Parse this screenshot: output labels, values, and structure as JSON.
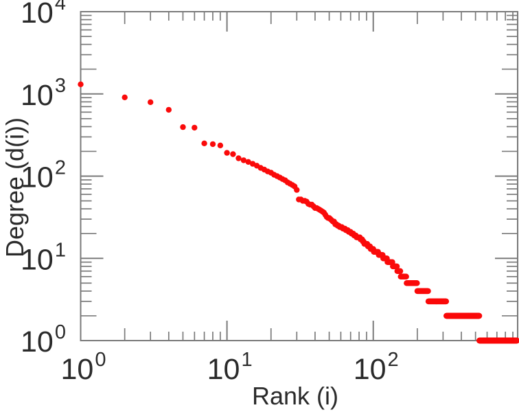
{
  "chart_data": {
    "type": "scatter",
    "title": "",
    "x_axis": {
      "label": "Rank (i)",
      "scale": "log",
      "min": 1,
      "max": 970,
      "tick_base": "10",
      "tick_exponents": [
        0,
        1,
        2
      ]
    },
    "y_axis": {
      "label": "Degree (d(i))",
      "scale": "log",
      "min": 1,
      "max": 10000,
      "tick_base": "10",
      "tick_exponents": [
        0,
        1,
        2,
        3,
        4
      ]
    },
    "legend": null,
    "grid": false,
    "marker_color": "#fa0a0a",
    "frame_color": "#7a7a7a",
    "text_color": "#2a2a2a",
    "series_name": "degree-vs-rank",
    "runs_format": [
      "degree",
      "rank_from",
      "rank_to"
    ],
    "runs": [
      [
        1307,
        1,
        1
      ],
      [
        908,
        2,
        2
      ],
      [
        793,
        3,
        3
      ],
      [
        641,
        4,
        4
      ],
      [
        395,
        5,
        5
      ],
      [
        389,
        6,
        6
      ],
      [
        250,
        7,
        7
      ],
      [
        245,
        8,
        8
      ],
      [
        236,
        9,
        9
      ],
      [
        192,
        10,
        10
      ],
      [
        185,
        11,
        11
      ],
      [
        165,
        12,
        12
      ],
      [
        156,
        13,
        13
      ],
      [
        149,
        14,
        14
      ],
      [
        141,
        15,
        15
      ],
      [
        134,
        16,
        16
      ],
      [
        126,
        17,
        17
      ],
      [
        120,
        18,
        18
      ],
      [
        114,
        19,
        19
      ],
      [
        110,
        20,
        20
      ],
      [
        104,
        21,
        21
      ],
      [
        100,
        22,
        22
      ],
      [
        96,
        23,
        23
      ],
      [
        92,
        24,
        24
      ],
      [
        89,
        25,
        25
      ],
      [
        84,
        26,
        26
      ],
      [
        81,
        27,
        27
      ],
      [
        78,
        28,
        28
      ],
      [
        75,
        29,
        29
      ],
      [
        68,
        30,
        30
      ],
      [
        52,
        31,
        32
      ],
      [
        50,
        33,
        34
      ],
      [
        49,
        35,
        35
      ],
      [
        46,
        36,
        36
      ],
      [
        45,
        37,
        38
      ],
      [
        43,
        39,
        39
      ],
      [
        41,
        40,
        41
      ],
      [
        40,
        42,
        42
      ],
      [
        39,
        43,
        43
      ],
      [
        38,
        44,
        44
      ],
      [
        37,
        45,
        45
      ],
      [
        36,
        46,
        46
      ],
      [
        34,
        47,
        47
      ],
      [
        32,
        48,
        48
      ],
      [
        31,
        49,
        50
      ],
      [
        30,
        51,
        51
      ],
      [
        29,
        52,
        52
      ],
      [
        28,
        53,
        54
      ],
      [
        26,
        55,
        56
      ],
      [
        25,
        57,
        58
      ],
      [
        24,
        59,
        61
      ],
      [
        23,
        62,
        64
      ],
      [
        22,
        65,
        67
      ],
      [
        21,
        68,
        70
      ],
      [
        20,
        71,
        73
      ],
      [
        19,
        74,
        76
      ],
      [
        18,
        77,
        81
      ],
      [
        17,
        82,
        84
      ],
      [
        16,
        85,
        86
      ],
      [
        15,
        87,
        91
      ],
      [
        14,
        92,
        95
      ],
      [
        13,
        96,
        100
      ],
      [
        12,
        101,
        108
      ],
      [
        11,
        109,
        116
      ],
      [
        10,
        117,
        124
      ],
      [
        9,
        125,
        135
      ],
      [
        8,
        136,
        145
      ],
      [
        7,
        146,
        153
      ],
      [
        6,
        154,
        168
      ],
      [
        5,
        169,
        199
      ],
      [
        4,
        200,
        237
      ],
      [
        3,
        238,
        315
      ],
      [
        2,
        316,
        530
      ],
      [
        1,
        531,
        960
      ]
    ]
  }
}
